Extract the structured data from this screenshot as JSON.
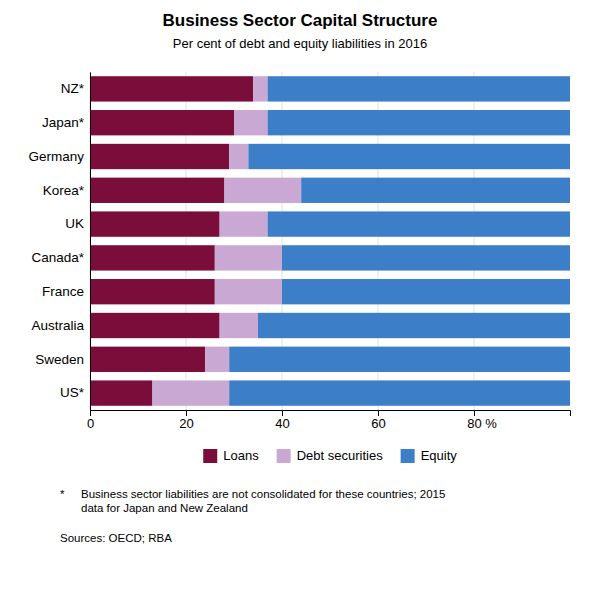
{
  "chart_data": {
    "type": "bar",
    "orientation": "horizontal",
    "stacked": true,
    "title": "Business Sector Capital Structure",
    "subtitle": "Per cent of debt and equity liabilities in 2016",
    "categories": [
      "NZ*",
      "Japan*",
      "Germany",
      "Korea*",
      "UK",
      "Canada*",
      "France",
      "Australia",
      "Sweden",
      "US*"
    ],
    "series": [
      {
        "name": "Loans",
        "color": "#7B0D3B",
        "values": [
          34,
          30,
          29,
          28,
          27,
          26,
          26,
          27,
          24,
          13
        ]
      },
      {
        "name": "Debt securities",
        "color": "#C9A8D4",
        "values": [
          3,
          7,
          4,
          16,
          10,
          14,
          14,
          8,
          5,
          16
        ]
      },
      {
        "name": "Equity",
        "color": "#3D7EC9",
        "values": [
          63,
          63,
          67,
          56,
          63,
          60,
          60,
          65,
          71,
          71
        ]
      }
    ],
    "xlim": [
      0,
      100
    ],
    "xticks": [
      0,
      20,
      40,
      60,
      80
    ],
    "xlabel": "%",
    "grid": true,
    "legend": "bottom",
    "footnote_marker": "*",
    "footnote": "Business sector liabilities are not consolidated for these countries; 2015\ndata for Japan and New Zealand",
    "source": "Sources: OECD; RBA"
  }
}
